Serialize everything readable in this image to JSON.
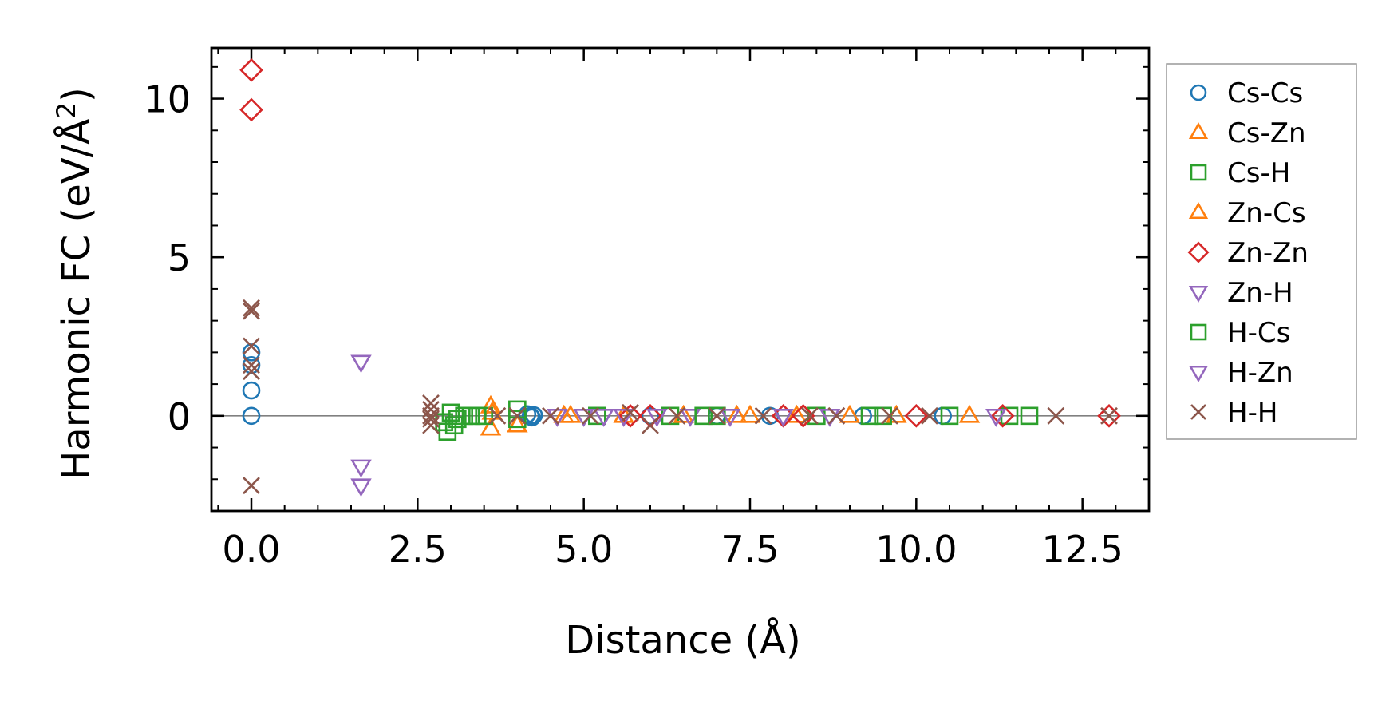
{
  "chart_data": {
    "type": "scatter",
    "title": "",
    "xlabel": "Distance (Å)",
    "ylabel_main": "Harmonic FC (eV/Å",
    "ylabel_sup": "2",
    "ylabel_close": ")",
    "xlim": [
      -0.6,
      13.5
    ],
    "ylim": [
      -3.0,
      11.6
    ],
    "xticks": [
      0.0,
      2.5,
      5.0,
      7.5,
      10.0,
      12.5
    ],
    "xtick_labels": [
      "0.0",
      "2.5",
      "5.0",
      "7.5",
      "10.0",
      "12.5"
    ],
    "yticks": [
      0,
      5,
      10
    ],
    "ytick_labels": [
      "0",
      "5",
      "10"
    ],
    "zero_line": true,
    "legend_position": "right",
    "series": [
      {
        "name": "Cs-Cs",
        "marker": "circle",
        "color": "#1f77b4",
        "points": [
          [
            0,
            2.0
          ],
          [
            0,
            1.6
          ],
          [
            0,
            0.8
          ],
          [
            0,
            0
          ],
          [
            4.15,
            0.05
          ],
          [
            4.2,
            0.0
          ],
          [
            4.22,
            -0.05
          ],
          [
            4.25,
            0.02
          ],
          [
            6.0,
            0.0
          ],
          [
            7.0,
            0.0
          ],
          [
            7.8,
            0.0
          ],
          [
            9.2,
            0.0
          ],
          [
            10.4,
            0.0
          ]
        ]
      },
      {
        "name": "Cs-Zn",
        "marker": "triangle-up",
        "color": "#ff7f0e",
        "points": [
          [
            3.6,
            0.3
          ],
          [
            3.6,
            -0.4
          ],
          [
            4.0,
            -0.3
          ],
          [
            4.7,
            0.0
          ],
          [
            5.6,
            0.0
          ],
          [
            7.3,
            0.0
          ],
          [
            8.2,
            0.0
          ],
          [
            9.7,
            0.0
          ],
          [
            10.8,
            0.0
          ]
        ]
      },
      {
        "name": "Cs-H",
        "marker": "square",
        "color": "#2ca02c",
        "points": [
          [
            2.9,
            -0.2
          ],
          [
            2.95,
            -0.5
          ],
          [
            3.0,
            0.1
          ],
          [
            3.1,
            -0.1
          ],
          [
            3.3,
            0.0
          ],
          [
            3.5,
            0.0
          ],
          [
            4.0,
            0.2
          ],
          [
            4.0,
            -0.1
          ],
          [
            5.2,
            0.0
          ],
          [
            6.3,
            0.0
          ],
          [
            7.0,
            0.0
          ],
          [
            8.5,
            0.0
          ],
          [
            9.3,
            0.0
          ],
          [
            10.5,
            0.0
          ],
          [
            11.4,
            0.0
          ]
        ]
      },
      {
        "name": "Zn-Cs",
        "marker": "triangle-up",
        "color": "#ff7f0e",
        "points": [
          [
            3.62,
            0.1
          ],
          [
            4.8,
            0.0
          ],
          [
            6.5,
            0.0
          ],
          [
            7.5,
            0.0
          ],
          [
            9.0,
            0.0
          ]
        ]
      },
      {
        "name": "Zn-Zn",
        "marker": "diamond",
        "color": "#d62728",
        "points": [
          [
            0,
            10.9
          ],
          [
            0,
            9.65
          ],
          [
            5.7,
            0.0
          ],
          [
            6.0,
            0.0
          ],
          [
            8.0,
            0.0
          ],
          [
            8.3,
            0.0
          ],
          [
            10.0,
            0.0
          ],
          [
            11.3,
            0.0
          ],
          [
            12.9,
            0.0
          ]
        ]
      },
      {
        "name": "Zn-H",
        "marker": "triangle-down",
        "color": "#9467bd",
        "points": [
          [
            1.65,
            1.7
          ],
          [
            1.65,
            -1.6
          ],
          [
            1.65,
            -2.2
          ],
          [
            4.6,
            0.0
          ],
          [
            5.3,
            0.0
          ],
          [
            6.6,
            0.0
          ],
          [
            7.2,
            0.0
          ],
          [
            8.7,
            0.0
          ]
        ]
      },
      {
        "name": "H-Cs",
        "marker": "square",
        "color": "#2ca02c",
        "points": [
          [
            3.05,
            -0.3
          ],
          [
            3.2,
            0.0
          ],
          [
            3.4,
            0.0
          ],
          [
            6.8,
            0.0
          ],
          [
            9.5,
            0.0
          ],
          [
            11.7,
            0.0
          ]
        ]
      },
      {
        "name": "H-Zn",
        "marker": "triangle-down",
        "color": "#9467bd",
        "points": [
          [
            5.0,
            0.0
          ],
          [
            5.6,
            0.0
          ],
          [
            6.1,
            0.0
          ],
          [
            8.0,
            0.0
          ],
          [
            11.2,
            0.0
          ]
        ]
      },
      {
        "name": "H-H",
        "marker": "x",
        "color": "#8c564b",
        "points": [
          [
            0,
            3.4
          ],
          [
            0,
            3.3
          ],
          [
            0,
            2.2
          ],
          [
            0,
            1.6
          ],
          [
            0,
            1.4
          ],
          [
            0,
            -2.2
          ],
          [
            2.7,
            0.4
          ],
          [
            2.7,
            0.2
          ],
          [
            2.7,
            0.0
          ],
          [
            2.7,
            -0.1
          ],
          [
            2.7,
            -0.3
          ],
          [
            3.7,
            0.0
          ],
          [
            4.0,
            0.0
          ],
          [
            4.5,
            0.0
          ],
          [
            5.1,
            0.0
          ],
          [
            5.7,
            0.1
          ],
          [
            6.0,
            -0.3
          ],
          [
            6.4,
            0.0
          ],
          [
            7.0,
            0.0
          ],
          [
            7.7,
            0.0
          ],
          [
            8.4,
            0.0
          ],
          [
            8.8,
            0.0
          ],
          [
            9.6,
            0.0
          ],
          [
            10.2,
            0.0
          ],
          [
            12.1,
            0.0
          ],
          [
            12.9,
            0.0
          ]
        ]
      }
    ]
  }
}
